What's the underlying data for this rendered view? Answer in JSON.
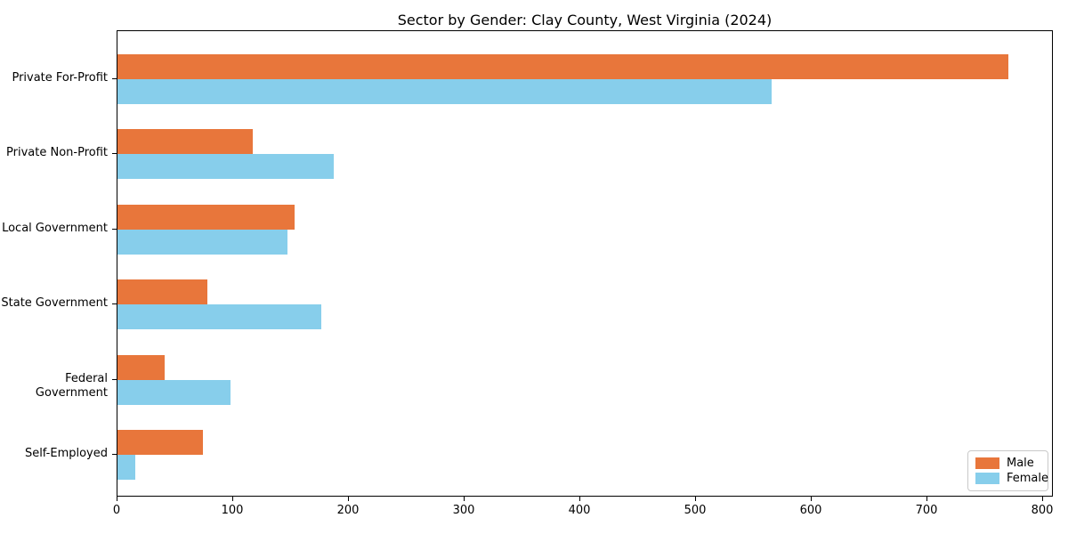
{
  "chart_data": {
    "type": "bar",
    "orientation": "horizontal",
    "title": "Sector by Gender: Clay County, West Virginia (2024)",
    "categories": [
      "Private For-Profit",
      "Private Non-Profit",
      "Local Government",
      "State Government",
      "Federal Government",
      "Self-Employed"
    ],
    "series": [
      {
        "name": "Male",
        "color": "#e8763b",
        "values": [
          770,
          117,
          153,
          78,
          41,
          74
        ]
      },
      {
        "name": "Female",
        "color": "#87ceeb",
        "values": [
          565,
          187,
          147,
          176,
          98,
          15
        ]
      }
    ],
    "xlabel": "",
    "ylabel": "",
    "xlim": [
      0,
      809
    ],
    "x_ticks": [
      0,
      100,
      200,
      300,
      400,
      500,
      600,
      700,
      800
    ],
    "grid": false,
    "legend_position": "lower right",
    "background_color": "#ffffff",
    "spine_color": "#000000"
  }
}
